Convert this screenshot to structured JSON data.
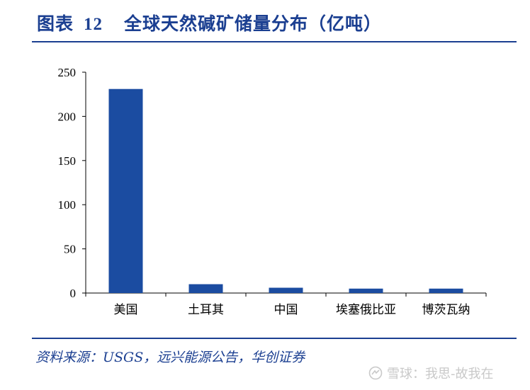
{
  "header": {
    "figure_label": "图表",
    "figure_number": "12",
    "title_text": "全球天然碱矿储量分布（亿吨）"
  },
  "chart_data": {
    "type": "bar",
    "categories": [
      "美国",
      "土耳其",
      "中国",
      "埃塞俄比亚",
      "博茨瓦纳"
    ],
    "values": [
      231,
      10,
      6,
      5,
      5
    ],
    "yticks": [
      "0",
      "50",
      "100",
      "150",
      "200",
      "250"
    ],
    "ylim": [
      0,
      250
    ],
    "bar_color": "#1b4ca1",
    "title": "",
    "xlabel": "",
    "ylabel": ""
  },
  "footer": {
    "source_text": "资料来源：USGS，远兴能源公告，华创证券",
    "watermark_text": "雪球：我思-故我在"
  },
  "colors": {
    "accent": "#1b3f91"
  }
}
